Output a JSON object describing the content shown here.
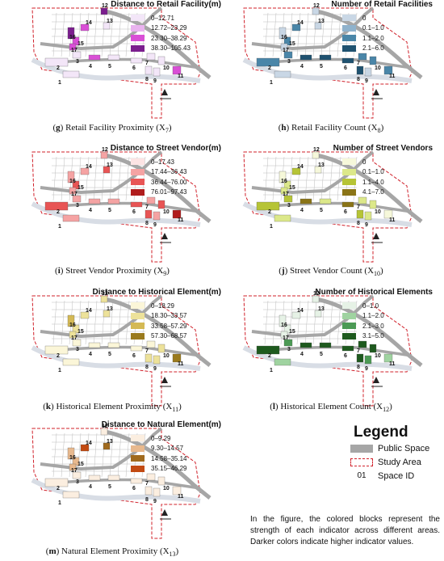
{
  "panels": [
    {
      "key": "g",
      "title": "Distance to Retail Facility(m)",
      "caption_letter": "g",
      "caption_text": " Retail Facility Proximity (X",
      "caption_sub": "7",
      "legend": [
        {
          "label": "0–12.71",
          "color": "#f3e6f8"
        },
        {
          "label": "12.72–23.29",
          "color": "#e9b3ef"
        },
        {
          "label": "23.30–38.29",
          "color": "#d94fd6"
        },
        {
          "label": "38.30–105.43",
          "color": "#7b1e8e"
        }
      ],
      "blocks": [
        0,
        0,
        0,
        2,
        0,
        0,
        0,
        0,
        0,
        0,
        2,
        3,
        0,
        2,
        2,
        3,
        2
      ]
    },
    {
      "key": "h",
      "title": "Number of Retail Facilities",
      "caption_letter": "h",
      "caption_text": " Retail Facility Count (X",
      "caption_sub": "8",
      "legend": [
        {
          "label": "0",
          "color": "#c9d7e5"
        },
        {
          "label": "0.1–1.0",
          "color": "#8fb2cc"
        },
        {
          "label": "1.1–2.0",
          "color": "#4a86a8"
        },
        {
          "label": "2.1–6.0",
          "color": "#1f5270"
        }
      ],
      "blocks": [
        0,
        2,
        2,
        3,
        3,
        3,
        2,
        3,
        0,
        2,
        2,
        0,
        0,
        2,
        2,
        0,
        0
      ]
    },
    {
      "key": "i",
      "title": "Distance to Street Vendor(m)",
      "caption_letter": "i",
      "caption_text": " Street Vendor Proximity (X",
      "caption_sub": "9",
      "legend": [
        {
          "label": "0–17.43",
          "color": "#fde4e4"
        },
        {
          "label": "17.44–36.43",
          "color": "#f5a3a3"
        },
        {
          "label": "36.44–76.00",
          "color": "#e85555"
        },
        {
          "label": "76.01–97.43",
          "color": "#b01c1c"
        }
      ],
      "blocks": [
        1,
        2,
        1,
        1,
        1,
        2,
        1,
        2,
        1,
        2,
        3,
        1,
        2,
        1,
        2,
        1,
        1
      ]
    },
    {
      "key": "j",
      "title": "Number of Street Vendors",
      "caption_letter": "j",
      "caption_text": " Street Vendor Count (X",
      "caption_sub": "10",
      "legend": [
        {
          "label": "0",
          "color": "#f6f8da"
        },
        {
          "label": "0.1–1.0",
          "color": "#dce88a"
        },
        {
          "label": "1.1–4.0",
          "color": "#b6c436"
        },
        {
          "label": "4.1–7.0",
          "color": "#8a7416"
        }
      ],
      "blocks": [
        1,
        2,
        2,
        3,
        1,
        3,
        1,
        2,
        1,
        1,
        0,
        0,
        0,
        2,
        1,
        0,
        1
      ]
    },
    {
      "key": "k",
      "title": "Distance to Historical Element(m)",
      "caption_letter": "k",
      "caption_text": " Historical Element Proximity (X",
      "caption_sub": "11",
      "legend": [
        {
          "label": "0–18.29",
          "color": "#fbf6d8"
        },
        {
          "label": "18.30–33.57",
          "color": "#ede29a"
        },
        {
          "label": "33.58–57.29",
          "color": "#d4b955"
        },
        {
          "label": "57.30–68.57",
          "color": "#9a7a1d"
        }
      ],
      "blocks": [
        0,
        0,
        0,
        0,
        0,
        0,
        0,
        1,
        1,
        1,
        3,
        1,
        1,
        1,
        1,
        2,
        1
      ]
    },
    {
      "key": "l",
      "title": "Number of Historical Elements",
      "caption_letter": "l",
      "caption_text": " Historical Element Count (X",
      "caption_sub": "12",
      "legend": [
        {
          "label": "0–1.0",
          "color": "#e6f2e6"
        },
        {
          "label": "1.1–2.0",
          "color": "#9fd3a0"
        },
        {
          "label": "2.1–3.0",
          "color": "#4c9a55"
        },
        {
          "label": "3.1–5.0",
          "color": "#1e5a1e"
        }
      ],
      "blocks": [
        1,
        3,
        2,
        3,
        3,
        3,
        3,
        3,
        2,
        3,
        1,
        0,
        0,
        0,
        0,
        0,
        0
      ]
    },
    {
      "key": "m",
      "title": "Distance to Natural Element(m)",
      "caption_letter": "m",
      "caption_text": " Natural Element Proximity (X",
      "caption_sub": "13",
      "legend": [
        {
          "label": "0–9.29",
          "color": "#fbeee0"
        },
        {
          "label": "9.30–14.57",
          "color": "#e8b98e"
        },
        {
          "label": "14.58–35.14",
          "color": "#a06a1e"
        },
        {
          "label": "35.15–46.29",
          "color": "#c24a12"
        }
      ],
      "blocks": [
        0,
        0,
        0,
        0,
        0,
        0,
        0,
        0,
        0,
        0,
        0,
        0,
        2,
        3,
        1,
        1,
        1
      ]
    }
  ],
  "space_ids": [
    "1",
    "2",
    "3",
    "4",
    "5",
    "6",
    "7",
    "8",
    "9",
    "10",
    "11",
    "12",
    "13",
    "14",
    "15",
    "16",
    "17"
  ],
  "legend": {
    "title": "Legend",
    "items": [
      {
        "label": "Public Space",
        "color": "#a6a6a6"
      },
      {
        "label": "Study Area",
        "color": "#d0202a"
      },
      {
        "label": "Space ID",
        "marker": "01"
      }
    ]
  },
  "note": "In the figure, the colored blocks represent the strength of each indicator across different areas. Darker colors indicate higher indicator values."
}
